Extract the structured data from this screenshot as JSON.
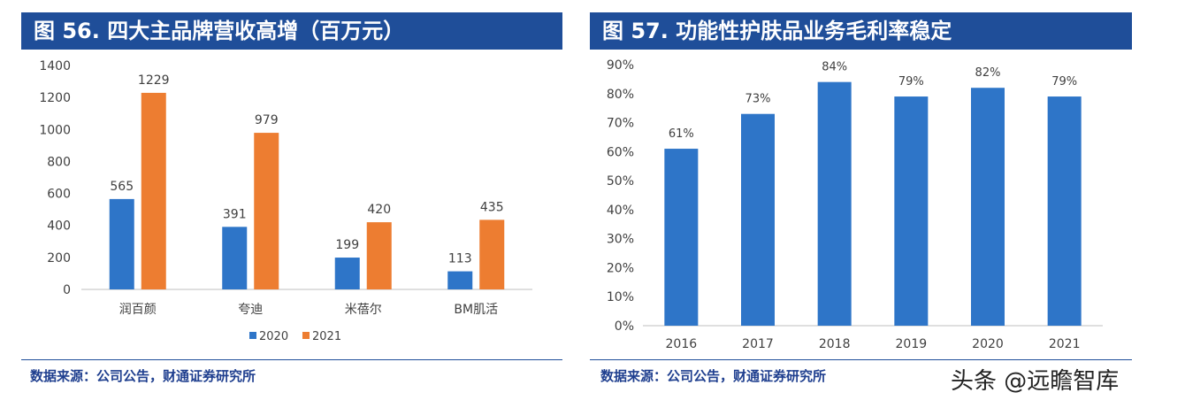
{
  "panels": [
    {
      "title": "图 56. 四大主品牌营收高增（百万元）",
      "source": "数据来源：公司公告，财通证券研究所"
    },
    {
      "title": "图 57. 功能性护肤品业务毛利率稳定",
      "source": "数据来源：公司公告，财通证券研究所"
    }
  ],
  "watermark": "头条 @远瞻智库",
  "colors": {
    "title_bg": "#1f4e99",
    "series_2020": "#2e75c8",
    "series_2021": "#ed7d31",
    "bar_blue": "#2e75c8"
  },
  "chart_data": [
    {
      "type": "bar",
      "categories": [
        "润百颜",
        "夸迪",
        "米蓓尔",
        "BM肌活"
      ],
      "series": [
        {
          "name": "2020",
          "values": [
            565,
            391,
            199,
            113
          ],
          "labels": [
            "565",
            "391",
            "199",
            "113"
          ]
        },
        {
          "name": "2021",
          "values": [
            1229,
            979,
            420,
            435
          ],
          "labels": [
            "1229",
            "979",
            "420",
            "435"
          ]
        }
      ],
      "ylim": [
        0,
        1400
      ],
      "yticks": [
        "0",
        "200",
        "400",
        "600",
        "800",
        "1000",
        "1200",
        "1400"
      ],
      "legend": "bottom",
      "grid": false
    },
    {
      "type": "bar",
      "categories": [
        "2016",
        "2017",
        "2018",
        "2019",
        "2020",
        "2021"
      ],
      "values": [
        61,
        73,
        84,
        79,
        82,
        79
      ],
      "labels": [
        "61%",
        "73%",
        "84%",
        "79%",
        "82%",
        "79%"
      ],
      "ylim": [
        0,
        90
      ],
      "yticks": [
        "0%",
        "10%",
        "20%",
        "30%",
        "40%",
        "50%",
        "60%",
        "70%",
        "80%",
        "90%"
      ],
      "grid": false
    }
  ]
}
